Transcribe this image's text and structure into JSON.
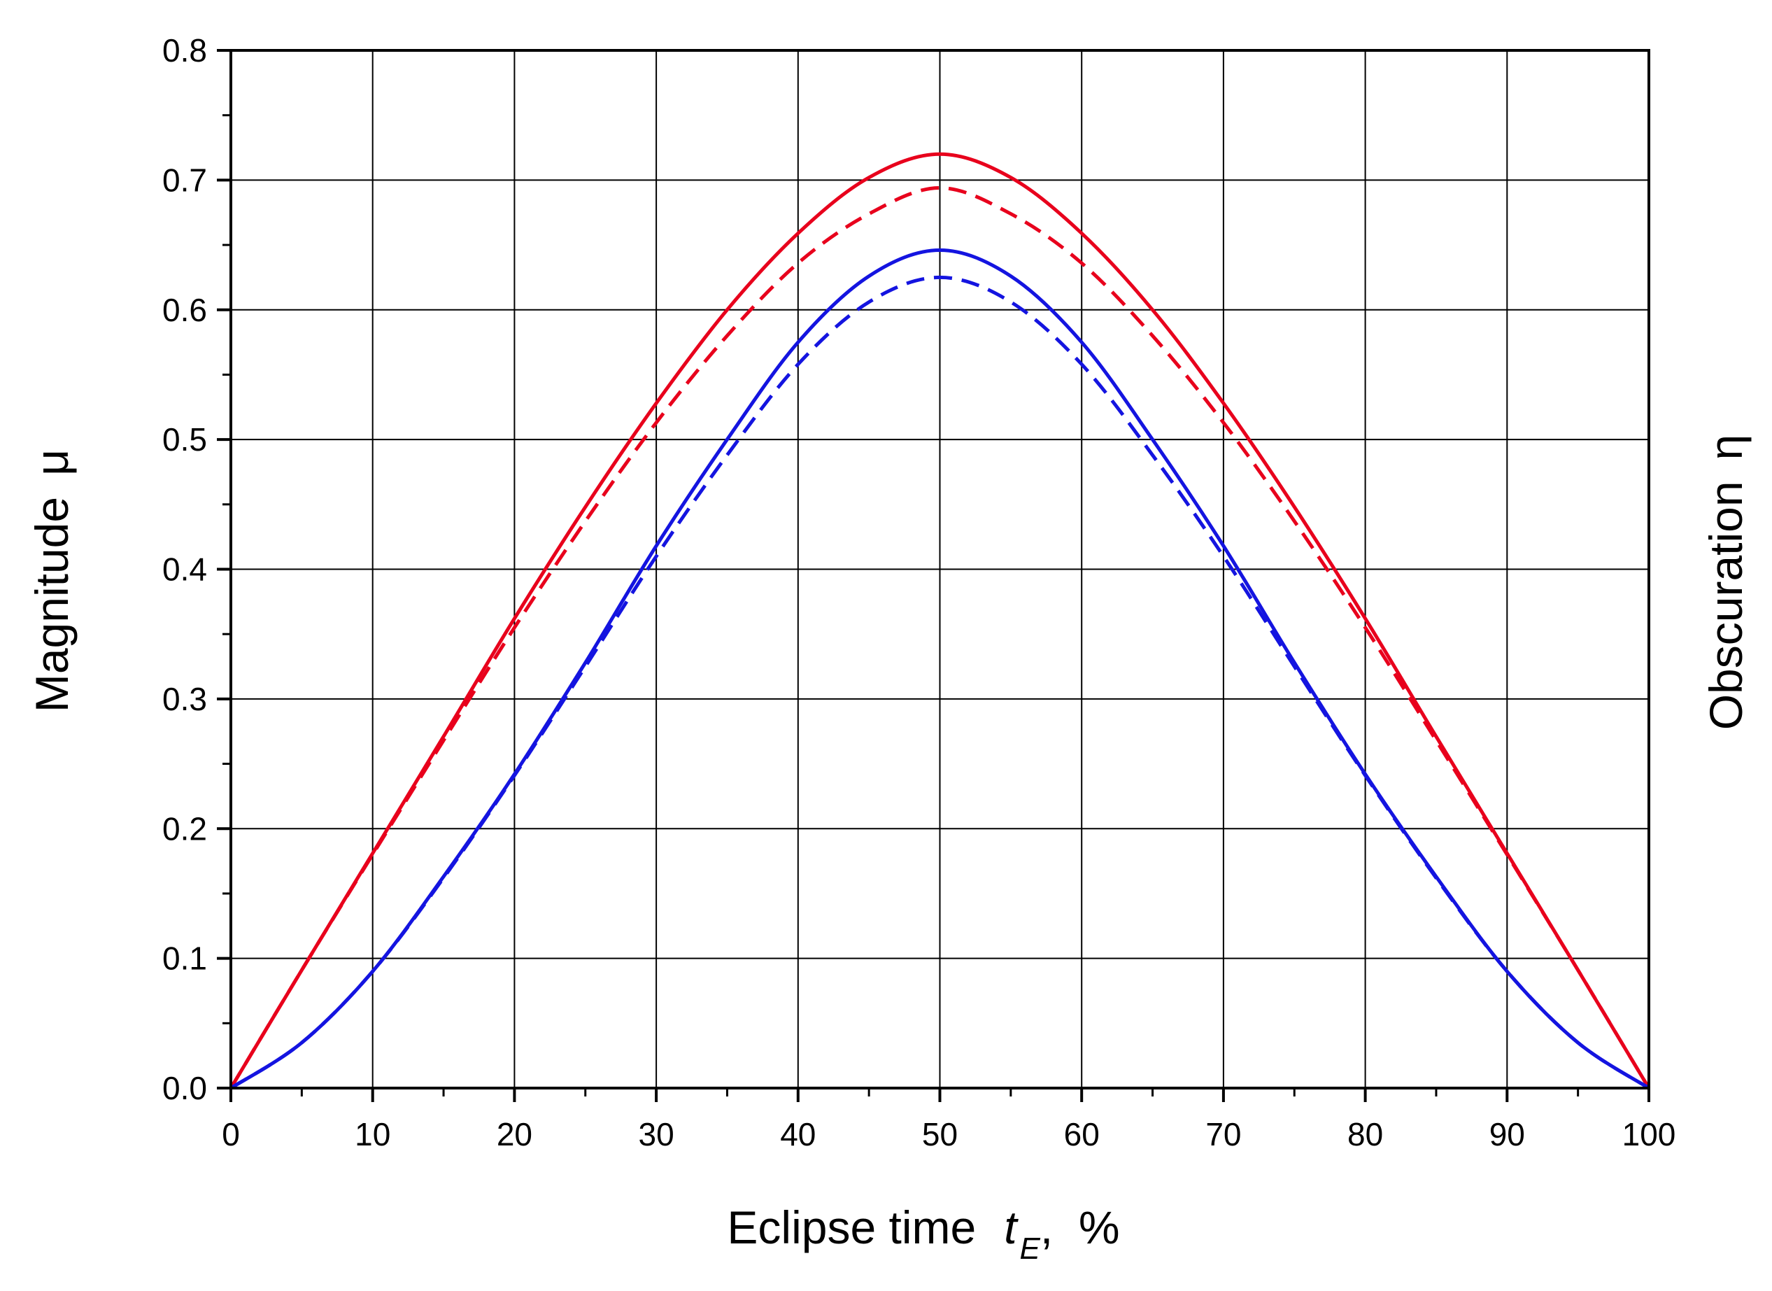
{
  "chart_data": {
    "type": "line",
    "title": "",
    "xlabel": "Eclipse time",
    "xlabel_symbol": "t",
    "xlabel_subscript": "E",
    "xlabel_unit": ",  %",
    "ylabel": "Magnitude",
    "ylabel_symbol": "μ",
    "y2label": "Obscuration",
    "y2label_symbol": "η",
    "xlim": [
      0,
      100
    ],
    "ylim": [
      0,
      0.8
    ],
    "xticks": [
      0,
      10,
      20,
      30,
      40,
      50,
      60,
      70,
      80,
      90,
      100
    ],
    "xtick_labels": [
      "0",
      "10",
      "20",
      "30",
      "40",
      "50",
      "60",
      "70",
      "80",
      "90",
      "100"
    ],
    "yticks": [
      0.0,
      0.1,
      0.2,
      0.3,
      0.4,
      0.5,
      0.6,
      0.7,
      0.8
    ],
    "ytick_labels": [
      "0.0",
      "0.1",
      "0.2",
      "0.3",
      "0.4",
      "0.5",
      "0.6",
      "0.7",
      "0.8"
    ],
    "grid": true,
    "legend": "none",
    "x": [
      0,
      5,
      10,
      15,
      20,
      25,
      30,
      35,
      40,
      45,
      50,
      55,
      60,
      65,
      70,
      75,
      80,
      85,
      90,
      95,
      100
    ],
    "series": [
      {
        "color": "#e8001c",
        "dash": "solid",
        "values": [
          0.0,
          0.091,
          0.181,
          0.271,
          0.362,
          0.448,
          0.528,
          0.6,
          0.659,
          0.702,
          0.72,
          0.702,
          0.659,
          0.6,
          0.528,
          0.448,
          0.362,
          0.271,
          0.181,
          0.091,
          0.0
        ]
      },
      {
        "color": "#e8001c",
        "dash": "dashed",
        "values": [
          0.0,
          0.091,
          0.18,
          0.268,
          0.355,
          0.437,
          0.513,
          0.58,
          0.636,
          0.674,
          0.694,
          0.674,
          0.636,
          0.58,
          0.513,
          0.437,
          0.355,
          0.268,
          0.18,
          0.091,
          0.0
        ]
      },
      {
        "color": "#1414e0",
        "dash": "solid",
        "values": [
          0.0,
          0.035,
          0.09,
          0.163,
          0.242,
          0.328,
          0.418,
          0.5,
          0.575,
          0.626,
          0.646,
          0.626,
          0.575,
          0.5,
          0.418,
          0.328,
          0.242,
          0.163,
          0.09,
          0.035,
          0.0
        ]
      },
      {
        "color": "#1414e0",
        "dash": "dashed",
        "values": [
          0.0,
          0.035,
          0.09,
          0.162,
          0.241,
          0.325,
          0.41,
          0.488,
          0.558,
          0.606,
          0.625,
          0.606,
          0.558,
          0.488,
          0.41,
          0.325,
          0.241,
          0.162,
          0.09,
          0.035,
          0.0
        ]
      }
    ]
  }
}
